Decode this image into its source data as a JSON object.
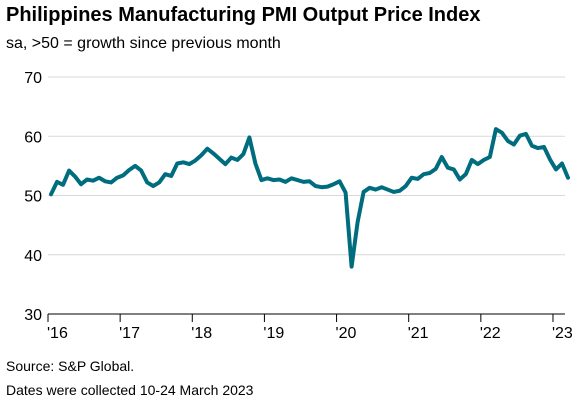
{
  "title": "Philippines Manufacturing PMI Output Price Index",
  "subtitle": "sa, >50 = growth since previous month",
  "source": "Source: S&P Global.",
  "note": "Dates were collected 10-24 March 2023",
  "colors": {
    "line": "#006d7f",
    "grid": "#d9d9d9",
    "axis": "#000000"
  },
  "chart_data": {
    "type": "line",
    "ylim": [
      30,
      70
    ],
    "yticks": [
      30,
      40,
      50,
      60,
      70
    ],
    "grid": true,
    "xtick_labels": [
      "'16",
      "'17",
      "'18",
      "'19",
      "'20",
      "'21",
      "'22",
      "'23"
    ],
    "x_start": "2016-01",
    "x_end": "2023-03",
    "series": [
      {
        "values": [
          50.2,
          52.3,
          51.8,
          54.2,
          53.2,
          51.9,
          52.7,
          52.5,
          53.0,
          52.4,
          52.2,
          53.0,
          53.4,
          54.3,
          55.0,
          54.2,
          52.2,
          51.6,
          52.2,
          53.6,
          53.3,
          55.4,
          55.6,
          55.3,
          55.9,
          56.8,
          57.9,
          57.1,
          56.2,
          55.3,
          56.4,
          56.0,
          57.0,
          59.8,
          55.4,
          52.6,
          52.9,
          52.6,
          52.7,
          52.3,
          52.9,
          52.6,
          52.3,
          52.4,
          51.6,
          51.4,
          51.5,
          51.9,
          52.4,
          50.5,
          38.0,
          45.5,
          50.6,
          51.3,
          51.0,
          51.4,
          51.0,
          50.6,
          50.8,
          51.6,
          53.0,
          52.8,
          53.6,
          53.8,
          54.5,
          56.5,
          54.7,
          54.4,
          52.7,
          53.6,
          56.0,
          55.3,
          56.0,
          56.5,
          61.2,
          60.6,
          59.2,
          58.6,
          60.1,
          60.4,
          58.4,
          58.0,
          58.2,
          56.1,
          54.4,
          55.4,
          53.0
        ]
      }
    ]
  }
}
